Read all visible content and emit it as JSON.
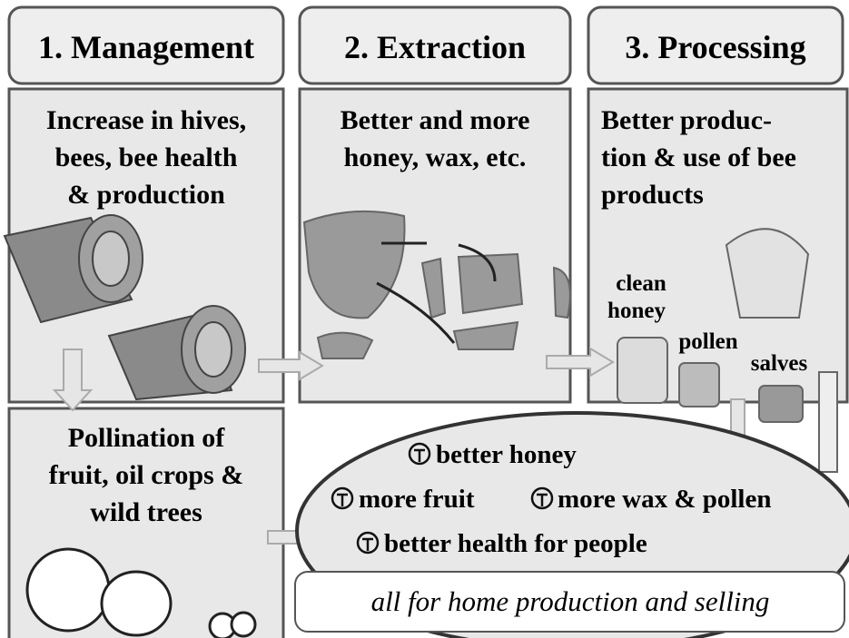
{
  "headers": [
    "1. Management",
    "2. Extraction",
    "3. Processing"
  ],
  "panels": [
    {
      "lines": [
        "Increase in hives,",
        "bees, bee health",
        "& production"
      ]
    },
    {
      "lines": [
        "Better and more",
        "honey, wax, etc."
      ]
    },
    {
      "lines": [
        "Better produc-",
        "tion & use of bee",
        "products"
      ]
    },
    {
      "lines": [
        "Pollination of",
        "fruit, oil crops &",
        "wild trees"
      ]
    }
  ],
  "product_labels": [
    "clean",
    "honey",
    "pollen",
    "salves"
  ],
  "benefits": [
    "better honey",
    "more fruit",
    "more wax & pollen",
    "better health for people"
  ],
  "footer": "all for home production and selling"
}
